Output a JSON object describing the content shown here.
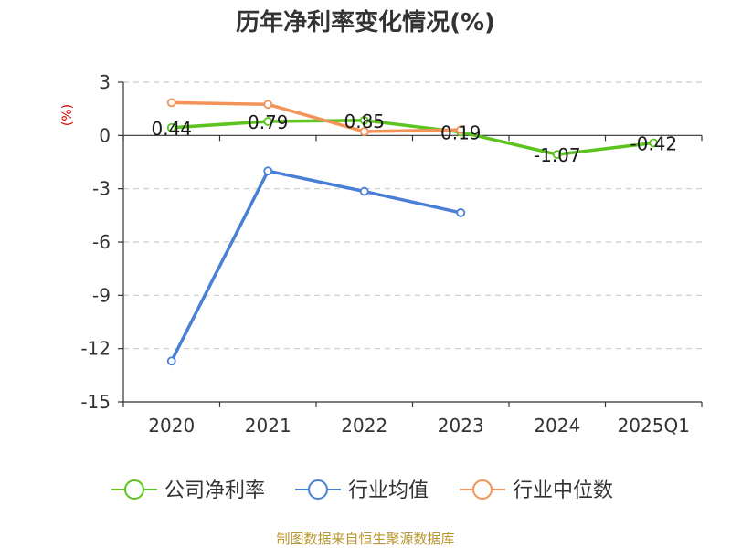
{
  "chart_data": {
    "type": "line",
    "title": "历年净利率变化情况(%)",
    "ylabel": "(%)",
    "categories": [
      "2020",
      "2021",
      "2022",
      "2023",
      "2024",
      "2025Q1"
    ],
    "ylim": [
      -15,
      3
    ],
    "yticks": [
      3,
      0,
      -3,
      -6,
      -9,
      -12,
      -15
    ],
    "ytick_labels": [
      "3",
      "0",
      "-3",
      "-6",
      "-9",
      "-12",
      "-15"
    ],
    "grid": true,
    "legend": "bottom",
    "series": [
      {
        "name": "公司净利率",
        "color": "#5cc31f",
        "values": [
          0.44,
          0.79,
          0.85,
          0.19,
          -1.07,
          -0.42
        ],
        "labels": [
          "0.44",
          "0.79",
          "0.85",
          "0.19",
          "-1.07",
          "-0.42"
        ]
      },
      {
        "name": "行业均值",
        "color": "#4a7fd6",
        "values": [
          -12.7,
          -2.0,
          -3.15,
          -4.35,
          null,
          null
        ]
      },
      {
        "name": "行业中位数",
        "color": "#f39358",
        "values": [
          1.85,
          1.75,
          0.22,
          0.32,
          null,
          null
        ]
      }
    ]
  },
  "source": "制图数据来自恒生聚源数据库"
}
